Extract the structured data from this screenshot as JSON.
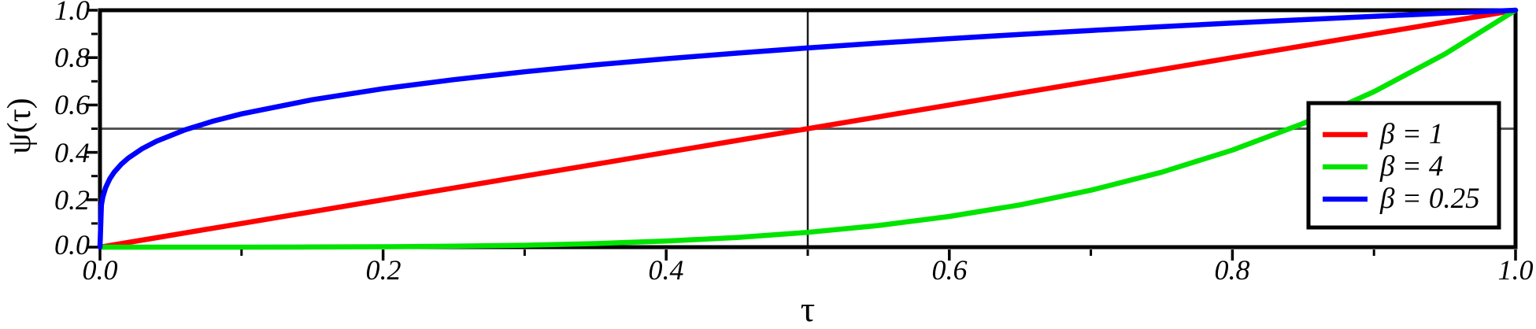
{
  "figure": {
    "xlabel": "τ",
    "ylabel": "ψ(τ)"
  },
  "axes": {
    "x_tick_labels": [
      "0.0",
      "0.2",
      "0.4",
      "0.6",
      "0.8",
      "1.0"
    ],
    "y_tick_labels": [
      "0.0",
      "0.2",
      "0.4",
      "0.6",
      "0.8",
      "1.0"
    ]
  },
  "legend": {
    "entries": [
      {
        "label": "β = 1",
        "color": "#ff0000"
      },
      {
        "label": "β = 4",
        "color": "#00e400"
      },
      {
        "label": "β = 0.25",
        "color": "#0000ff"
      }
    ]
  },
  "chart_data": {
    "type": "line",
    "title": "",
    "xlabel": "τ",
    "ylabel": "ψ(τ)",
    "xlim": [
      0,
      1
    ],
    "ylim": [
      0,
      1
    ],
    "grid": false,
    "legend_position": "right",
    "x_major_ticks": [
      0,
      0.2,
      0.4,
      0.6,
      0.8,
      1.0
    ],
    "x_minor_ticks": [
      0.1,
      0.3,
      0.5,
      0.7,
      0.9
    ],
    "y_major_ticks": [
      0,
      0.2,
      0.4,
      0.6,
      0.8,
      1.0
    ],
    "y_minor_ticks": [
      0.1,
      0.3,
      0.5,
      0.7,
      0.9
    ],
    "guides": {
      "vline_x": 0.5,
      "hline_y": 0.5
    },
    "colors": {
      "frame": "#000000",
      "vertical_guide": "#1b1b1b",
      "horizontal_guide": "#555555",
      "legend_border": "#000000",
      "legend_fill": "#ffffff"
    },
    "x": [
      0,
      0.001,
      0.002,
      0.004,
      0.007,
      0.01,
      0.015,
      0.02,
      0.03,
      0.04,
      0.06,
      0.08,
      0.1,
      0.15,
      0.2,
      0.25,
      0.3,
      0.35,
      0.4,
      0.45,
      0.5,
      0.55,
      0.6,
      0.65,
      0.7,
      0.75,
      0.8,
      0.85,
      0.9,
      0.95,
      1
    ],
    "series": [
      {
        "name": "β = 1",
        "beta": 1,
        "color": "#ff0000",
        "y": [
          0,
          0.001,
          0.002,
          0.004,
          0.007,
          0.01,
          0.015,
          0.02,
          0.03,
          0.04,
          0.06,
          0.08,
          0.1,
          0.15,
          0.2,
          0.25,
          0.3,
          0.35,
          0.4,
          0.45,
          0.5,
          0.55,
          0.6,
          0.65,
          0.7,
          0.75,
          0.8,
          0.85,
          0.9,
          0.95,
          1
        ]
      },
      {
        "name": "β = 4",
        "beta": 4,
        "color": "#00e400",
        "y": [
          0,
          0,
          0,
          0,
          0,
          0,
          0,
          0,
          0,
          0,
          0,
          0,
          0.0001,
          0.0005,
          0.0016,
          0.0039,
          0.0081,
          0.015,
          0.0256,
          0.041,
          0.0625,
          0.0915,
          0.1296,
          0.1785,
          0.2401,
          0.3164,
          0.4096,
          0.522,
          0.6561,
          0.8145,
          1
        ]
      },
      {
        "name": "β = 0.25",
        "beta": 0.25,
        "color": "#0000ff",
        "y": [
          0,
          0.1778,
          0.2115,
          0.2515,
          0.2893,
          0.3162,
          0.35,
          0.3761,
          0.4162,
          0.4472,
          0.4949,
          0.5318,
          0.5623,
          0.6223,
          0.6687,
          0.7071,
          0.7401,
          0.7693,
          0.7953,
          0.819,
          0.8409,
          0.8612,
          0.8801,
          0.8979,
          0.9147,
          0.9306,
          0.9457,
          0.9602,
          0.974,
          0.9873,
          1
        ]
      }
    ]
  }
}
